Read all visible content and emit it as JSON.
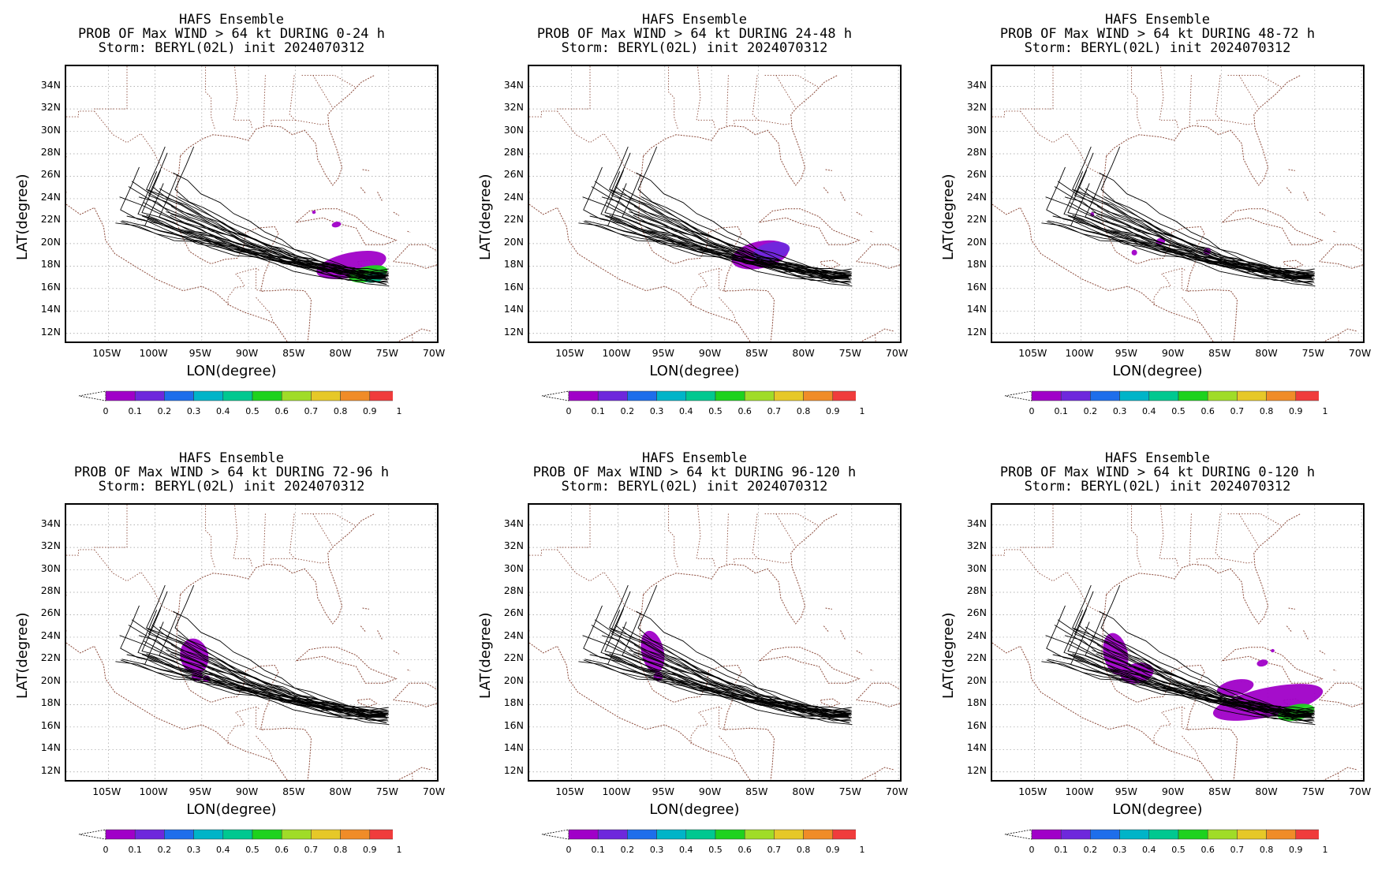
{
  "colors": {
    "land": "#8b4a3a",
    "grid": "#9a9a9a",
    "track": "#000000",
    "scale": [
      "#a000c8",
      "#6e28dc",
      "#1e6eeb",
      "#00b4c8",
      "#00c890",
      "#1ed21e",
      "#a0dc28",
      "#e6c828",
      "#f08c28",
      "#f03c3c",
      "#f0148c"
    ]
  },
  "axes": {
    "x_label": "LON(degree)",
    "y_label": "LAT(degree)",
    "lat_ticks": [
      "34N",
      "32N",
      "30N",
      "28N",
      "26N",
      "24N",
      "22N",
      "20N",
      "18N",
      "16N",
      "14N",
      "12N"
    ],
    "lon_ticks": [
      "105W",
      "100W",
      "95W",
      "90W",
      "85W",
      "80W",
      "75W",
      "70W"
    ],
    "colorbar_ticks": [
      "0",
      "0.1",
      "0.2",
      "0.3",
      "0.4",
      "0.5",
      "0.6",
      "0.7",
      "0.8",
      "0.9",
      "1"
    ]
  },
  "panels": [
    {
      "title1": "HAFS Ensemble",
      "title2": "PROB OF Max WIND > 64 kt DURING  0-24 h",
      "title3": "Storm: BERYL(02L) init 2024070312",
      "range": "0-24"
    },
    {
      "title1": "HAFS Ensemble",
      "title2": "PROB OF Max WIND > 64 kt DURING 24-48 h",
      "title3": "Storm: BERYL(02L) init 2024070312",
      "range": "24-48"
    },
    {
      "title1": "HAFS Ensemble",
      "title2": "PROB OF Max WIND > 64 kt DURING 48-72 h",
      "title3": "Storm: BERYL(02L) init 2024070312",
      "range": "48-72"
    },
    {
      "title1": "HAFS Ensemble",
      "title2": "PROB OF Max WIND > 64 kt DURING 72-96 h",
      "title3": "Storm: BERYL(02L) init 2024070312",
      "range": "72-96"
    },
    {
      "title1": "HAFS Ensemble",
      "title2": "PROB OF Max WIND > 64 kt DURING 96-120 h",
      "title3": "Storm: BERYL(02L) init 2024070312",
      "range": "96-120"
    },
    {
      "title1": "HAFS Ensemble",
      "title2": "PROB OF Max WIND > 64 kt DURING 0-120 h",
      "title3": "Storm: BERYL(02L) init 2024070312",
      "range": "0-120"
    }
  ]
}
